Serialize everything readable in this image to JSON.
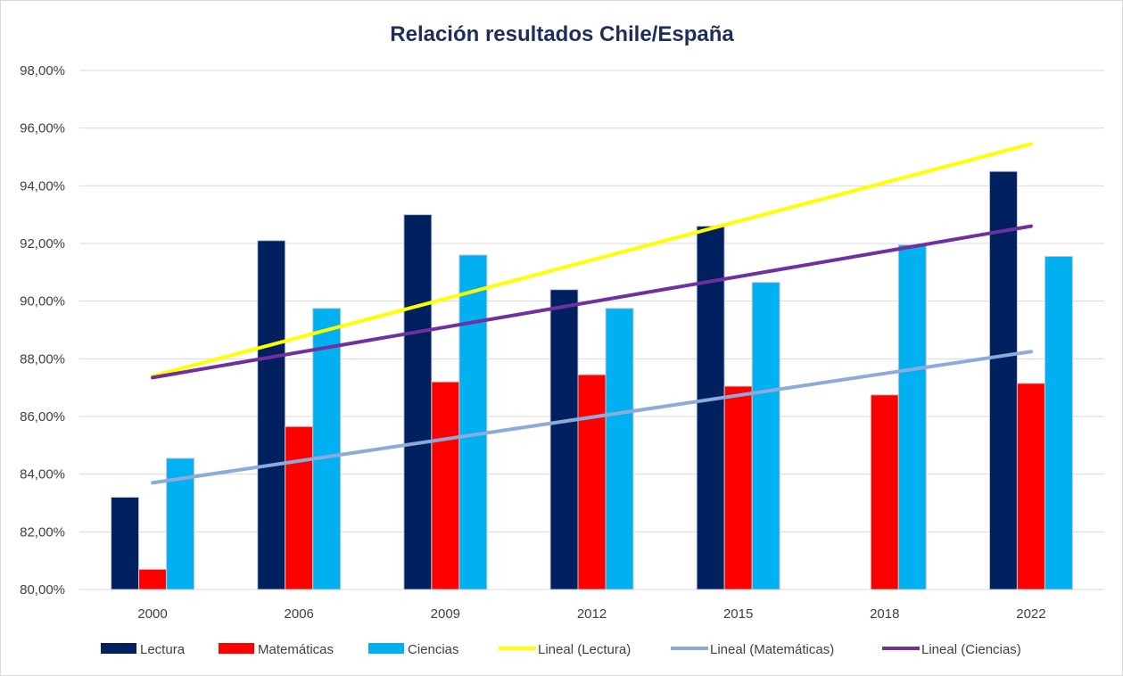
{
  "chart_data": {
    "type": "bar",
    "title": "Relación resultados Chile/España",
    "xlabel": "",
    "ylabel": "",
    "categories": [
      "2000",
      "2006",
      "2009",
      "2012",
      "2015",
      "2018",
      "2022"
    ],
    "ylim": [
      80,
      98
    ],
    "yticks": [
      "80,00%",
      "82,00%",
      "84,00%",
      "86,00%",
      "88,00%",
      "90,00%",
      "92,00%",
      "94,00%",
      "96,00%",
      "98,00%"
    ],
    "grid": true,
    "legend_position": "bottom",
    "series": [
      {
        "name": "Lectura",
        "color": "#002060",
        "values": [
          83.2,
          92.1,
          93.0,
          90.4,
          92.6,
          null,
          94.5
        ]
      },
      {
        "name": "Matemáticas",
        "color": "#ff0000",
        "values": [
          80.7,
          85.65,
          87.2,
          87.45,
          87.05,
          86.75,
          87.15
        ]
      },
      {
        "name": "Ciencias",
        "color": "#00b0f0",
        "values": [
          84.55,
          89.75,
          91.6,
          89.75,
          90.65,
          91.95,
          91.55
        ]
      }
    ],
    "trendlines": [
      {
        "name": "Lineal (Lectura)",
        "color": "#ffff00",
        "start": 87.4,
        "end": 95.45
      },
      {
        "name": "Lineal (Matemáticas)",
        "color": "#8eaadb",
        "start": 83.7,
        "end": 88.25
      },
      {
        "name": "Lineal (Ciencias)",
        "color": "#7030a0",
        "start": 87.35,
        "end": 92.6
      }
    ]
  }
}
